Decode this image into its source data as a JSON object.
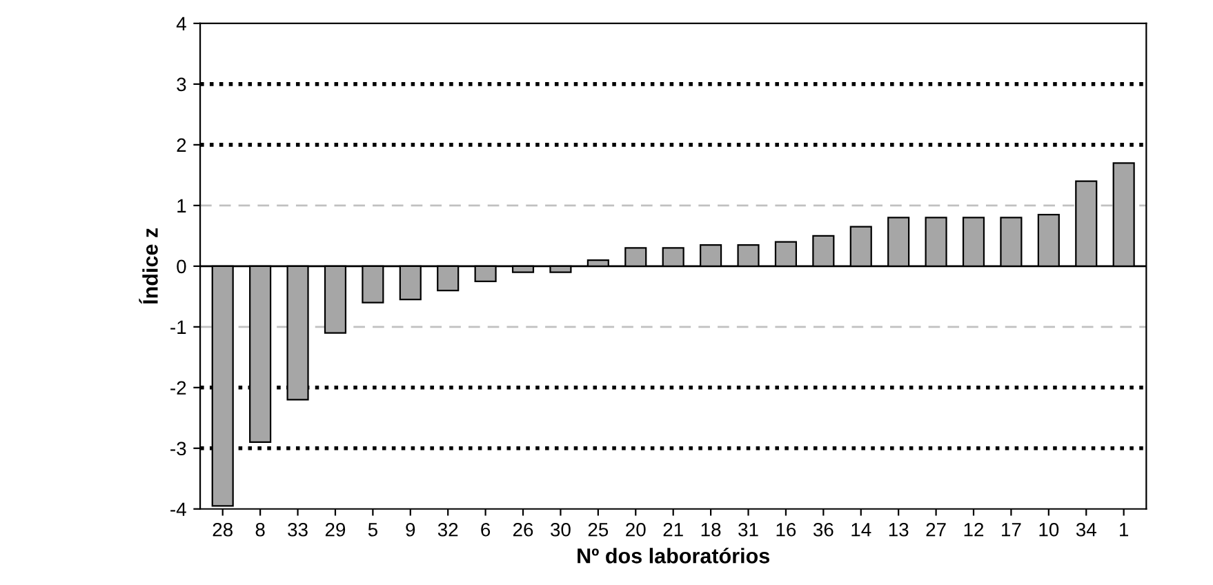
{
  "chart_data": {
    "type": "bar",
    "xlabel": "Nº dos laboratórios",
    "ylabel": "Índice z",
    "categories": [
      "28",
      "8",
      "33",
      "29",
      "5",
      "9",
      "32",
      "6",
      "26",
      "30",
      "25",
      "20",
      "21",
      "18",
      "31",
      "16",
      "36",
      "14",
      "13",
      "27",
      "12",
      "17",
      "10",
      "34",
      "1"
    ],
    "values": [
      -3.95,
      -2.9,
      -2.2,
      -1.1,
      -0.6,
      -0.55,
      -0.4,
      -0.25,
      -0.1,
      -0.1,
      0.1,
      0.3,
      0.3,
      0.35,
      0.35,
      0.4,
      0.5,
      0.65,
      0.8,
      0.8,
      0.8,
      0.8,
      0.85,
      1.4,
      1.7
    ],
    "color": "#a6a6a6",
    "ylim": [
      -4,
      4
    ],
    "yticks": [
      -4,
      -3,
      -2,
      -1,
      0,
      1,
      2,
      3,
      4
    ],
    "grid": false,
    "ref_lines": [
      {
        "axis": "y",
        "value": 3,
        "color": "#000000",
        "line_style": "dotted"
      },
      {
        "axis": "y",
        "value": 2,
        "color": "#000000",
        "line_style": "dotted"
      },
      {
        "axis": "y",
        "value": 1,
        "color": "#c0c0c0",
        "line_style": "dashed"
      },
      {
        "axis": "y",
        "value": -1,
        "color": "#c0c0c0",
        "line_style": "dashed"
      },
      {
        "axis": "y",
        "value": -2,
        "color": "#000000",
        "line_style": "dotted"
      },
      {
        "axis": "y",
        "value": -3,
        "color": "#000000",
        "line_style": "dotted"
      }
    ]
  }
}
